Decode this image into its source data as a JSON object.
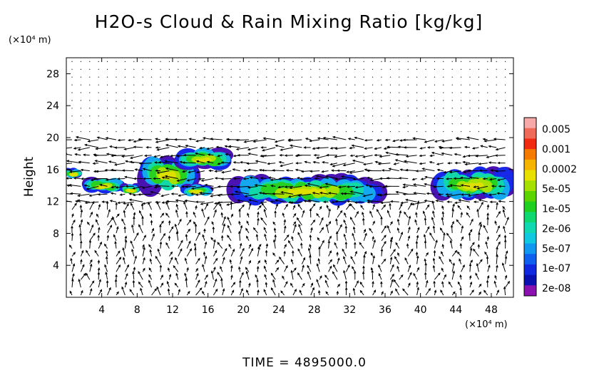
{
  "chart_data": {
    "type": "heatmap",
    "title": "H2O-s Cloud & Rain Mixing Ratio [kg/kg]",
    "ylabel": "Height",
    "x_unit": "(×10⁴ m)",
    "y_unit": "(×10⁴ m)",
    "x_ticks": [
      4,
      8,
      12,
      16,
      20,
      24,
      28,
      32,
      36,
      40,
      44,
      48
    ],
    "y_ticks": [
      4,
      8,
      12,
      16,
      20,
      24,
      28
    ],
    "xlim": [
      0,
      50.5
    ],
    "ylim": [
      0,
      30
    ],
    "colorbar": {
      "labels": [
        "0.005",
        "0.001",
        "0.0002",
        "5e-05",
        "1e-05",
        "2e-06",
        "5e-07",
        "1e-07",
        "2e-08"
      ],
      "colors": [
        "#f7a8a8",
        "#f06a5a",
        "#f02a10",
        "#f57a00",
        "#f5b400",
        "#e8e000",
        "#a6e000",
        "#5bd400",
        "#20d020",
        "#10d870",
        "#10d8b0",
        "#10c8e0",
        "#1098f0",
        "#1060f0",
        "#1028e0",
        "#0a10b0",
        "#8a10b0"
      ]
    },
    "cloud_regions": [
      {
        "x": [
          0,
          1.5
        ],
        "y": [
          14.8,
          16.5
        ]
      },
      {
        "x": [
          2.5,
          6
        ],
        "y": [
          12.8,
          15.5
        ]
      },
      {
        "x": [
          6.5,
          8
        ],
        "y": [
          12.8,
          14.5
        ]
      },
      {
        "x": [
          9,
          14
        ],
        "y": [
          12,
          19
        ]
      },
      {
        "x": [
          13,
          18
        ],
        "y": [
          15.5,
          19.5
        ]
      },
      {
        "x": [
          13.5,
          16
        ],
        "y": [
          12.5,
          14.5
        ]
      },
      {
        "x": [
          17.5,
          37
        ],
        "y": [
          11,
          16
        ]
      },
      {
        "x": [
          41.5,
          50.5
        ],
        "y": [
          11.5,
          17
        ]
      }
    ],
    "footer": "TIME  =  4895000.0"
  }
}
